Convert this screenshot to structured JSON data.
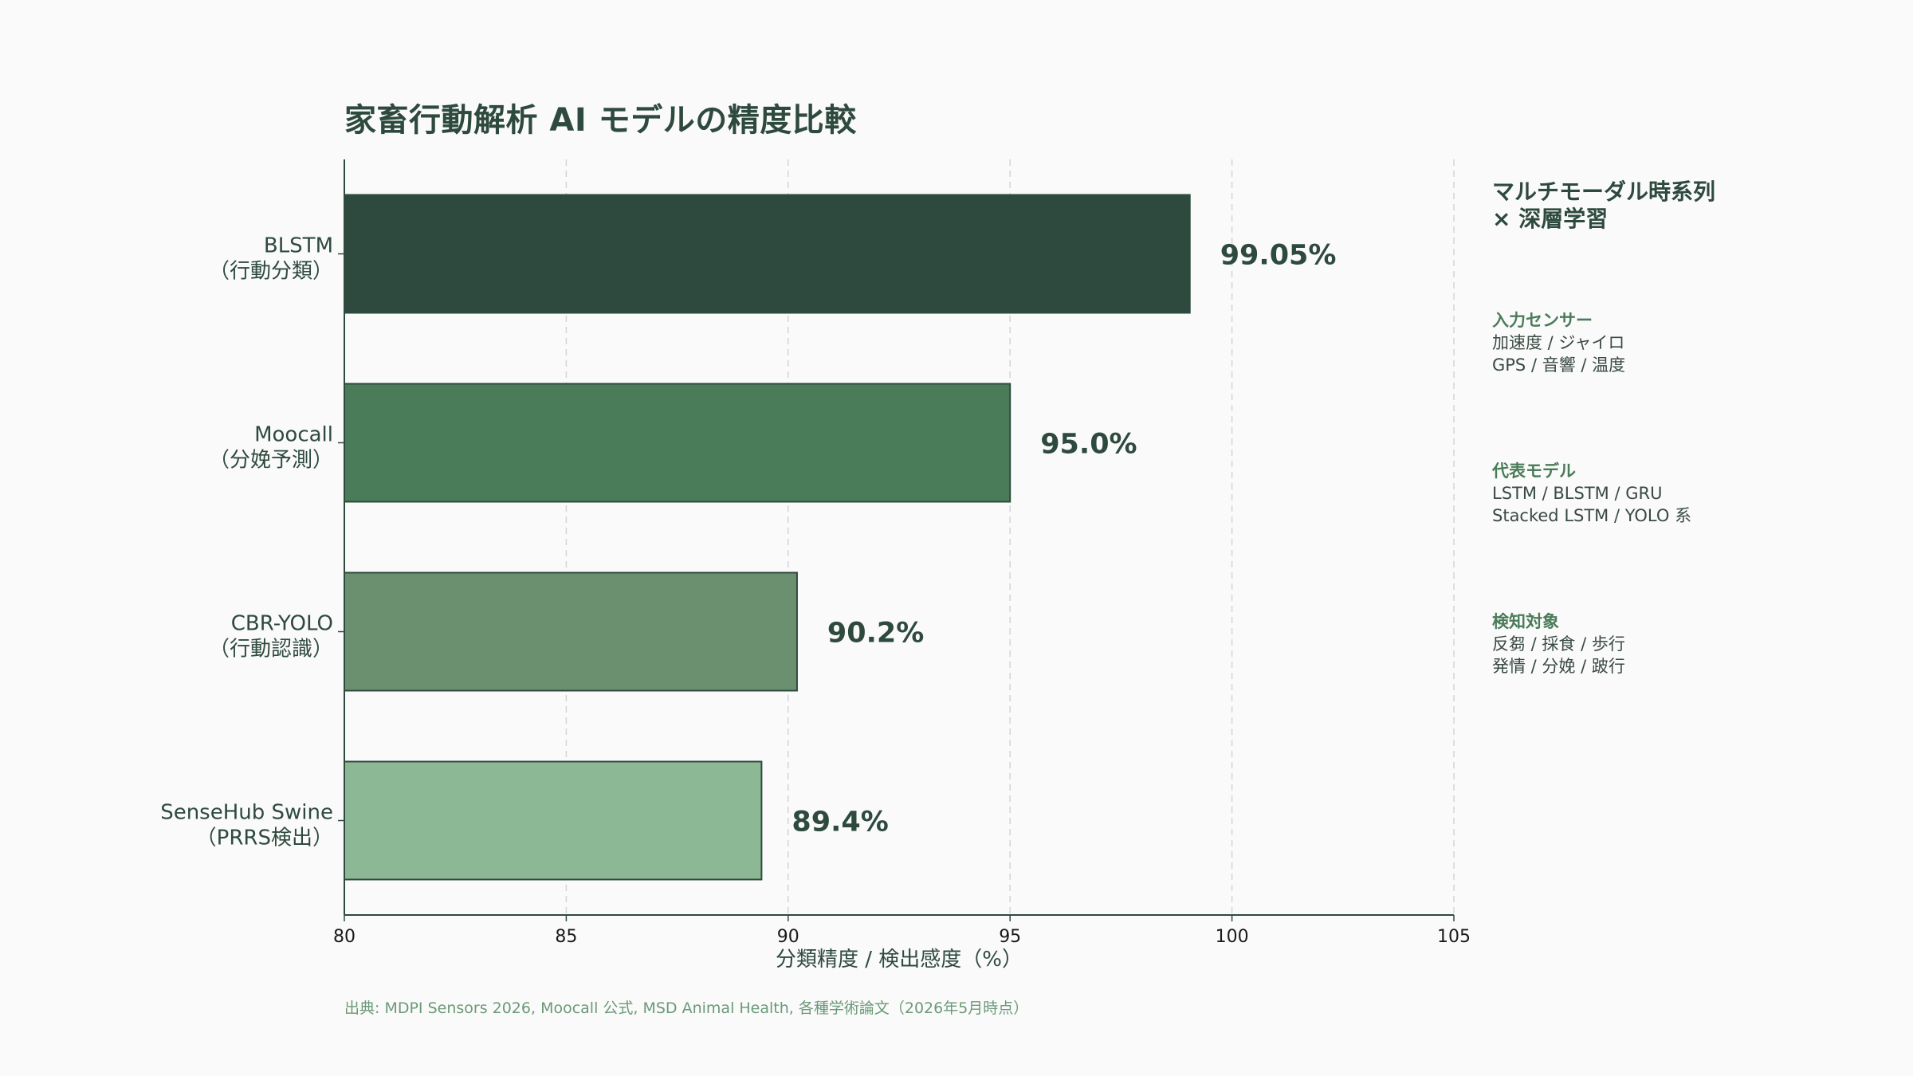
{
  "title": "家畜行動解析 AI モデルの精度比較",
  "chart_data": {
    "type": "bar",
    "orientation": "horizontal",
    "categories": [
      [
        "BLSTM",
        "（行動分類）"
      ],
      [
        "Moocall",
        "（分娩予測）"
      ],
      [
        "CBR-YOLO",
        "（行動認識）"
      ],
      [
        "SenseHub Swine",
        "（PRRS検出）"
      ]
    ],
    "values": [
      99.05,
      95.0,
      90.2,
      89.4
    ],
    "value_labels": [
      "99.05%",
      "95.0%",
      "90.2%",
      "89.4%"
    ],
    "bar_colors": [
      "#2e4a3e",
      "#4a7c59",
      "#6b9070",
      "#8db896"
    ],
    "xlabel": "分類精度 / 検出感度（%）",
    "xlim": [
      80,
      105
    ],
    "xticks": [
      80,
      85,
      90,
      95,
      100,
      105
    ],
    "grid": "vertical dashed"
  },
  "sidebar": {
    "heading_lines": [
      "マルチモーダル時系列",
      "× 深層学習"
    ],
    "blocks": [
      {
        "title": "入力センサー",
        "lines": [
          "加速度 / ジャイロ",
          "GPS / 音響 / 温度"
        ]
      },
      {
        "title": "代表モデル",
        "lines": [
          "LSTM / BLSTM / GRU",
          "Stacked LSTM / YOLO 系"
        ]
      },
      {
        "title": "検知対象",
        "lines": [
          "反芻 / 採食 / 歩行",
          "発情 / 分娩 / 跛行"
        ]
      }
    ]
  },
  "source": "出典: MDPI Sensors 2026, Moocall 公式, MSD Animal Health, 各種学術論文（2026年5月時点）",
  "colors": {
    "text_dark": "#2e4a3e",
    "accent": "#4a7c59",
    "source_text": "#6b9a78",
    "background": "#fafafa"
  }
}
